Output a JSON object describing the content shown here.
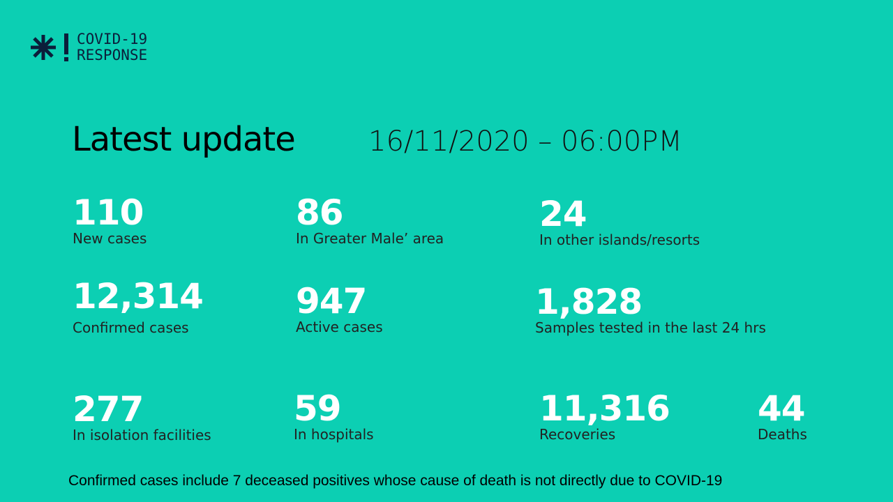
{
  "logo": {
    "line1": "COVID-19",
    "line2": "RESPONSE",
    "icon": "snowflake-exclamation-icon",
    "color": "#0b1e3a"
  },
  "header": {
    "title": "Latest update",
    "datetime": "16/11/2020 – 06:00PM"
  },
  "colors": {
    "background": "#0ccfb3",
    "number": "#ffffff"
  },
  "stats": [
    {
      "value": "110",
      "label": "New cases"
    },
    {
      "value": "86",
      "label": "In Greater Male’ area"
    },
    {
      "value": "24",
      "label": "In other islands/resorts"
    },
    {
      "value": "12,314",
      "label": "Confirmed cases"
    },
    {
      "value": "947",
      "label": "Active cases"
    },
    {
      "value": "1,828",
      "label": "Samples tested in the last 24 hrs"
    },
    {
      "value": "277",
      "label": "In isolation facilities"
    },
    {
      "value": "59",
      "label": "In hospitals"
    },
    {
      "value": "11,316",
      "label": "Recoveries"
    },
    {
      "value": "44",
      "label": "Deaths"
    }
  ],
  "footnote": "Confirmed cases include 7 deceased positives whose cause of death is not directly due to COVID-19"
}
